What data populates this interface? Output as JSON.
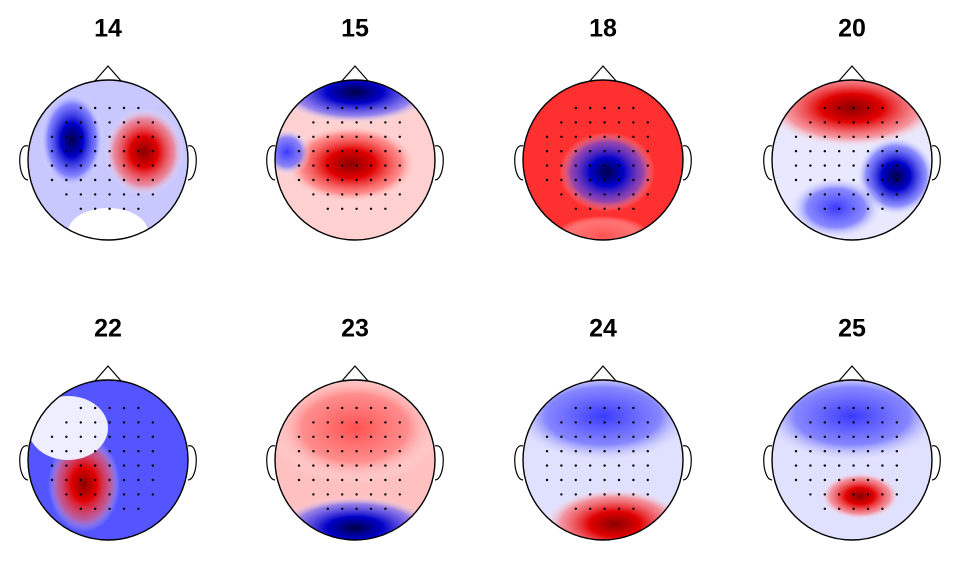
{
  "panels": [
    {
      "label": "14"
    },
    {
      "label": "15"
    },
    {
      "label": "18"
    },
    {
      "label": "20"
    },
    {
      "label": "22"
    },
    {
      "label": "23"
    },
    {
      "label": "24"
    },
    {
      "label": "25"
    }
  ]
}
